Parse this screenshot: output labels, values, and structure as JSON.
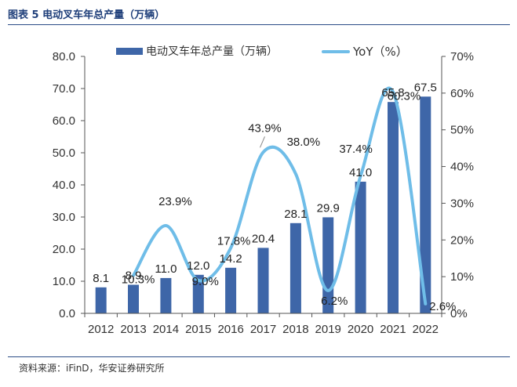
{
  "header": {
    "title": "图表 5 电动叉车年总产量（万辆）"
  },
  "footer": {
    "source": "资料来源：iFinD，华安证券研究所"
  },
  "colors": {
    "bar": "#3e66a8",
    "line": "#6fbde8",
    "title": "#1f3f7a",
    "axis": "#555555"
  },
  "chart_data": {
    "type": "bar",
    "categories": [
      "2012",
      "2013",
      "2014",
      "2015",
      "2016",
      "2017",
      "2018",
      "2019",
      "2020",
      "2021",
      "2022"
    ],
    "series": [
      {
        "name": "电动叉车年总产量（万辆）",
        "type": "bar",
        "axis": "left",
        "values": [
          8.1,
          8.9,
          11.0,
          12.0,
          14.2,
          20.4,
          28.1,
          29.9,
          41.0,
          65.8,
          67.5
        ],
        "labels": [
          "8.1",
          "8.9",
          "11.0",
          "12.0",
          "14.2",
          "20.4",
          "28.1",
          "29.9",
          "41.0",
          "65.8",
          "67.5"
        ]
      },
      {
        "name": "YoY（%）",
        "type": "line",
        "axis": "right",
        "values": [
          null,
          10.3,
          23.9,
          9.0,
          17.8,
          43.9,
          38.0,
          6.2,
          37.4,
          60.3,
          2.6
        ],
        "labels": [
          "",
          "10.3%",
          "23.9%",
          "9.0%",
          "17.8%",
          "43.9%",
          "38.0%",
          "6.2%",
          "37.4%",
          "60.3%",
          "2.6%"
        ]
      }
    ],
    "y_left": {
      "ylim": [
        0,
        80
      ],
      "ticks": [
        "0.0",
        "10.0",
        "20.0",
        "30.0",
        "40.0",
        "50.0",
        "60.0",
        "70.0",
        "80.0"
      ]
    },
    "y_right": {
      "ylim": [
        0,
        70
      ],
      "ticks": [
        "0%",
        "10%",
        "20%",
        "30%",
        "40%",
        "50%",
        "60%",
        "70%"
      ]
    },
    "grid": false,
    "legend_position": "top"
  }
}
